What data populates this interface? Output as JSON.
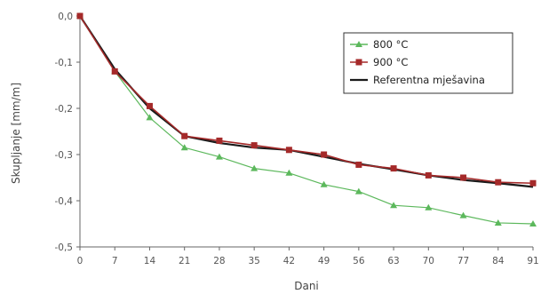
{
  "chart_data": {
    "type": "line",
    "xlabel": "Dani",
    "ylabel": "Skupljanje [mm/m]",
    "x": [
      0,
      7,
      14,
      21,
      28,
      35,
      42,
      49,
      56,
      63,
      70,
      77,
      84,
      91
    ],
    "xticks": [
      "0",
      "7",
      "14",
      "21",
      "28",
      "35",
      "42",
      "49",
      "56",
      "63",
      "70",
      "77",
      "84",
      "91"
    ],
    "yticks": [
      "0,0",
      "-0,1",
      "-0,2",
      "-0,3",
      "-0,4",
      "-0,5"
    ],
    "xlim": [
      0,
      91
    ],
    "ylim": [
      -0.5,
      0
    ],
    "grid": false,
    "legend_position": "top-right",
    "series": [
      {
        "name": "800 °C",
        "color": "#5cb85c",
        "marker": "triangle",
        "values": [
          0.0,
          -0.12,
          -0.22,
          -0.285,
          -0.305,
          -0.33,
          -0.34,
          -0.365,
          -0.38,
          -0.41,
          -0.415,
          -0.432,
          -0.448,
          -0.45
        ]
      },
      {
        "name": "900 °C",
        "color": "#a52a2a",
        "marker": "square",
        "values": [
          0.0,
          -0.12,
          -0.195,
          -0.26,
          -0.27,
          -0.28,
          -0.29,
          -0.3,
          -0.322,
          -0.33,
          -0.345,
          -0.35,
          -0.36,
          -0.362
        ]
      },
      {
        "name": "Referentna mješavina",
        "color": "#1a1a1a",
        "marker": "none",
        "values": [
          0.0,
          -0.115,
          -0.2,
          -0.26,
          -0.275,
          -0.285,
          -0.29,
          -0.305,
          -0.32,
          -0.332,
          -0.345,
          -0.355,
          -0.362,
          -0.37
        ]
      }
    ]
  }
}
